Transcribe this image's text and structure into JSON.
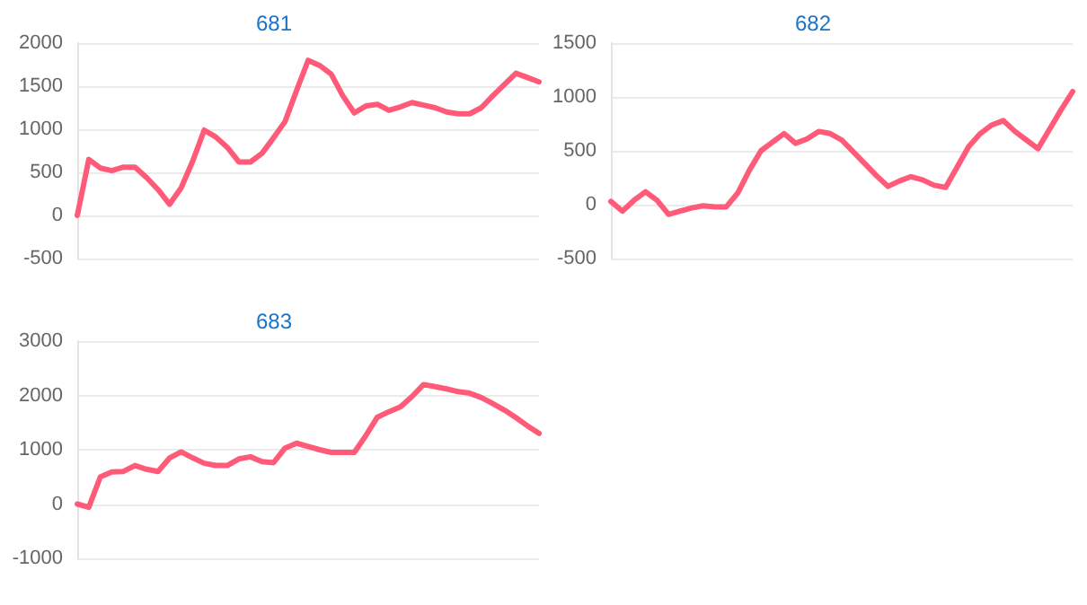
{
  "chart_data": [
    {
      "type": "line",
      "title": "681",
      "categories": [
        null,
        null,
        null,
        null,
        null,
        null,
        null,
        null,
        null,
        null,
        null,
        null,
        null,
        null,
        null,
        null,
        null,
        null,
        null,
        null,
        null,
        null,
        null,
        null,
        null,
        null,
        null,
        null,
        null,
        null,
        null,
        null,
        null,
        null,
        null,
        null,
        null,
        null,
        null,
        null,
        null
      ],
      "ylim": [
        -500,
        2000
      ],
      "yticks": [
        -500,
        0,
        500,
        1000,
        1500,
        2000
      ],
      "tick_labels": "y",
      "grid": "y",
      "line_style": "solid",
      "series": [
        {
          "color": "#ff5a77",
          "values": [
            0,
            650,
            550,
            520,
            560,
            560,
            440,
            300,
            130,
            320,
            630,
            990,
            910,
            790,
            620,
            620,
            720,
            900,
            1090,
            1450,
            1800,
            1740,
            1640,
            1390,
            1190,
            1270,
            1290,
            1220,
            1260,
            1310,
            1280,
            1250,
            1200,
            1180,
            1180,
            1250,
            1390,
            1520,
            1650,
            1600,
            1550
          ]
        }
      ]
    },
    {
      "type": "line",
      "title": "682",
      "categories": [
        null,
        null,
        null,
        null,
        null,
        null,
        null,
        null,
        null,
        null,
        null,
        null,
        null,
        null,
        null,
        null,
        null,
        null,
        null,
        null,
        null,
        null,
        null,
        null,
        null,
        null,
        null,
        null,
        null,
        null,
        null,
        null,
        null,
        null,
        null,
        null,
        null,
        null,
        null,
        null,
        null
      ],
      "ylim": [
        -500,
        1500
      ],
      "yticks": [
        -500,
        0,
        500,
        1000,
        1500
      ],
      "tick_labels": "y",
      "grid": "y",
      "line_style": "solid",
      "series": [
        {
          "color": "#ff5a77",
          "values": [
            30,
            -60,
            40,
            120,
            40,
            -90,
            -60,
            -30,
            -10,
            -20,
            -20,
            110,
            320,
            500,
            580,
            660,
            570,
            610,
            680,
            660,
            600,
            490,
            380,
            270,
            170,
            220,
            260,
            230,
            180,
            160,
            350,
            540,
            660,
            740,
            780,
            680,
            600,
            520,
            700,
            880,
            1050
          ]
        }
      ]
    },
    {
      "type": "line",
      "title": "683",
      "categories": [
        null,
        null,
        null,
        null,
        null,
        null,
        null,
        null,
        null,
        null,
        null,
        null,
        null,
        null,
        null,
        null,
        null,
        null,
        null,
        null,
        null,
        null,
        null,
        null,
        null,
        null,
        null,
        null,
        null,
        null,
        null,
        null,
        null,
        null,
        null,
        null,
        null,
        null,
        null,
        null,
        null
      ],
      "ylim": [
        -1000,
        3000
      ],
      "yticks": [
        -1000,
        0,
        1000,
        2000,
        3000
      ],
      "tick_labels": "y",
      "grid": "y",
      "line_style": "solid",
      "series": [
        {
          "color": "#ff5a77",
          "values": [
            0,
            -60,
            500,
            590,
            600,
            710,
            640,
            600,
            850,
            960,
            850,
            750,
            710,
            710,
            830,
            870,
            780,
            760,
            1030,
            1120,
            1060,
            1000,
            950,
            950,
            950,
            1260,
            1600,
            1700,
            1790,
            1980,
            2200,
            2160,
            2120,
            2070,
            2040,
            1960,
            1850,
            1730,
            1590,
            1440,
            1300
          ]
        }
      ]
    }
  ]
}
